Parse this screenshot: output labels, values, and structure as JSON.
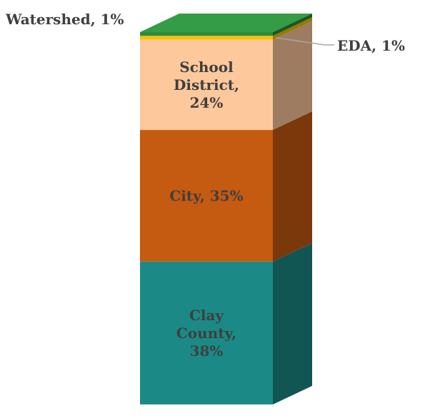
{
  "chart_data": {
    "type": "bar",
    "subtype": "3d-stacked-100-percent",
    "categories": [
      ""
    ],
    "series": [
      {
        "name": "Clay County",
        "value": 38,
        "unit": "%",
        "color": "#1b8a86",
        "label_lines": [
          "Clay",
          "County,",
          "38%"
        ]
      },
      {
        "name": "City",
        "value": 35,
        "unit": "%",
        "color": "#c55a11",
        "label_lines": [
          "City, 35%"
        ]
      },
      {
        "name": "School District",
        "value": 24,
        "unit": "%",
        "color": "#fdc89c",
        "label_lines": [
          "School",
          "District,",
          "24%"
        ]
      },
      {
        "name": "EDA",
        "value": 1,
        "unit": "%",
        "color": "#f7c300",
        "label_lines": [
          "EDA, 1%"
        ]
      },
      {
        "name": "Watershed",
        "value": 1,
        "unit": "%",
        "color": "#2e8b3d",
        "label_lines": [
          "Watershed, 1%"
        ]
      }
    ],
    "legend": "none",
    "grid": false
  }
}
